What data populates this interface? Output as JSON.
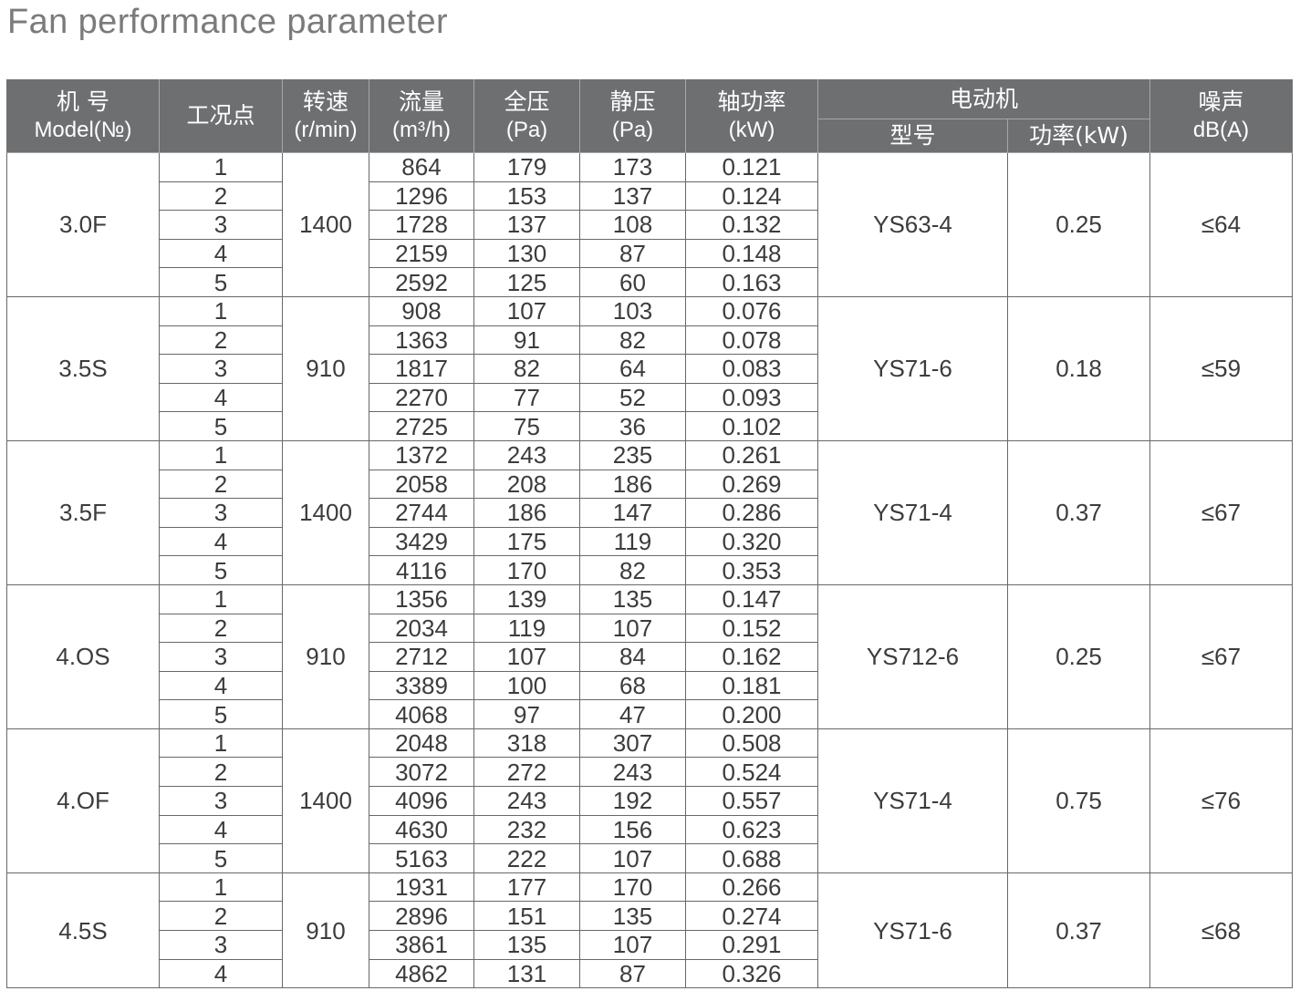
{
  "title": "Fan performance parameter",
  "theme": {
    "header_bg": "#6e6f71",
    "header_text": "#ffffff",
    "header_line": "#a6a7a9",
    "grid_color": "#686868",
    "text_color": "#3c3c3c",
    "title_color": "#7b7b7b"
  },
  "table": {
    "headers": {
      "model": {
        "line1": "机 号",
        "line2": "Model(№)"
      },
      "operating_point": {
        "line1": "工况点"
      },
      "speed": {
        "line1": "转速",
        "line2": "(r/min)"
      },
      "flow": {
        "line1": "流量",
        "line2": "(m³/h)"
      },
      "total_pressure": {
        "line1": "全压",
        "line2": "(Pa)"
      },
      "static_pressure": {
        "line1": "静压",
        "line2": "(Pa)"
      },
      "shaft_power": {
        "line1": "轴功率",
        "line2": "(kW)"
      },
      "motor": {
        "group": "电动机",
        "model": "型号",
        "power": "功率(kW)"
      },
      "noise": {
        "line1": "噪声",
        "line2": "dB(A)"
      }
    },
    "groups": [
      {
        "model": "3.0F",
        "speed": "1400",
        "motor_model": "YS63-4",
        "motor_power": "0.25",
        "noise": "≤64",
        "points": [
          {
            "point": "1",
            "flow": "864",
            "total_pressure": "179",
            "static_pressure": "173",
            "shaft_power": "0.121"
          },
          {
            "point": "2",
            "flow": "1296",
            "total_pressure": "153",
            "static_pressure": "137",
            "shaft_power": "0.124"
          },
          {
            "point": "3",
            "flow": "1728",
            "total_pressure": "137",
            "static_pressure": "108",
            "shaft_power": "0.132"
          },
          {
            "point": "4",
            "flow": "2159",
            "total_pressure": "130",
            "static_pressure": "87",
            "shaft_power": "0.148"
          },
          {
            "point": "5",
            "flow": "2592",
            "total_pressure": "125",
            "static_pressure": "60",
            "shaft_power": "0.163"
          }
        ]
      },
      {
        "model": "3.5S",
        "speed": "910",
        "motor_model": "YS71-6",
        "motor_power": "0.18",
        "noise": "≤59",
        "points": [
          {
            "point": "1",
            "flow": "908",
            "total_pressure": "107",
            "static_pressure": "103",
            "shaft_power": "0.076"
          },
          {
            "point": "2",
            "flow": "1363",
            "total_pressure": "91",
            "static_pressure": "82",
            "shaft_power": "0.078"
          },
          {
            "point": "3",
            "flow": "1817",
            "total_pressure": "82",
            "static_pressure": "64",
            "shaft_power": "0.083"
          },
          {
            "point": "4",
            "flow": "2270",
            "total_pressure": "77",
            "static_pressure": "52",
            "shaft_power": "0.093"
          },
          {
            "point": "5",
            "flow": "2725",
            "total_pressure": "75",
            "static_pressure": "36",
            "shaft_power": "0.102"
          }
        ]
      },
      {
        "model": "3.5F",
        "speed": "1400",
        "motor_model": "YS71-4",
        "motor_power": "0.37",
        "noise": "≤67",
        "points": [
          {
            "point": "1",
            "flow": "1372",
            "total_pressure": "243",
            "static_pressure": "235",
            "shaft_power": "0.261"
          },
          {
            "point": "2",
            "flow": "2058",
            "total_pressure": "208",
            "static_pressure": "186",
            "shaft_power": "0.269"
          },
          {
            "point": "3",
            "flow": "2744",
            "total_pressure": "186",
            "static_pressure": "147",
            "shaft_power": "0.286"
          },
          {
            "point": "4",
            "flow": "3429",
            "total_pressure": "175",
            "static_pressure": "119",
            "shaft_power": "0.320"
          },
          {
            "point": "5",
            "flow": "4116",
            "total_pressure": "170",
            "static_pressure": "82",
            "shaft_power": "0.353"
          }
        ]
      },
      {
        "model": "4.OS",
        "speed": "910",
        "motor_model": "YS712-6",
        "motor_power": "0.25",
        "noise": "≤67",
        "points": [
          {
            "point": "1",
            "flow": "1356",
            "total_pressure": "139",
            "static_pressure": "135",
            "shaft_power": "0.147"
          },
          {
            "point": "2",
            "flow": "2034",
            "total_pressure": "119",
            "static_pressure": "107",
            "shaft_power": "0.152"
          },
          {
            "point": "3",
            "flow": "2712",
            "total_pressure": "107",
            "static_pressure": "84",
            "shaft_power": "0.162"
          },
          {
            "point": "4",
            "flow": "3389",
            "total_pressure": "100",
            "static_pressure": "68",
            "shaft_power": "0.181"
          },
          {
            "point": "5",
            "flow": "4068",
            "total_pressure": "97",
            "static_pressure": "47",
            "shaft_power": "0.200"
          }
        ]
      },
      {
        "model": "4.OF",
        "speed": "1400",
        "motor_model": "YS71-4",
        "motor_power": "0.75",
        "noise": "≤76",
        "points": [
          {
            "point": "1",
            "flow": "2048",
            "total_pressure": "318",
            "static_pressure": "307",
            "shaft_power": "0.508"
          },
          {
            "point": "2",
            "flow": "3072",
            "total_pressure": "272",
            "static_pressure": "243",
            "shaft_power": "0.524"
          },
          {
            "point": "3",
            "flow": "4096",
            "total_pressure": "243",
            "static_pressure": "192",
            "shaft_power": "0.557"
          },
          {
            "point": "4",
            "flow": "4630",
            "total_pressure": "232",
            "static_pressure": "156",
            "shaft_power": "0.623"
          },
          {
            "point": "5",
            "flow": "5163",
            "total_pressure": "222",
            "static_pressure": "107",
            "shaft_power": "0.688"
          }
        ]
      },
      {
        "model": "4.5S",
        "speed": "910",
        "motor_model": "YS71-6",
        "motor_power": "0.37",
        "noise": "≤68",
        "points": [
          {
            "point": "1",
            "flow": "1931",
            "total_pressure": "177",
            "static_pressure": "170",
            "shaft_power": "0.266"
          },
          {
            "point": "2",
            "flow": "2896",
            "total_pressure": "151",
            "static_pressure": "135",
            "shaft_power": "0.274"
          },
          {
            "point": "3",
            "flow": "3861",
            "total_pressure": "135",
            "static_pressure": "107",
            "shaft_power": "0.291"
          },
          {
            "point": "4",
            "flow": "4862",
            "total_pressure": "131",
            "static_pressure": "87",
            "shaft_power": "0.326"
          }
        ]
      }
    ]
  }
}
